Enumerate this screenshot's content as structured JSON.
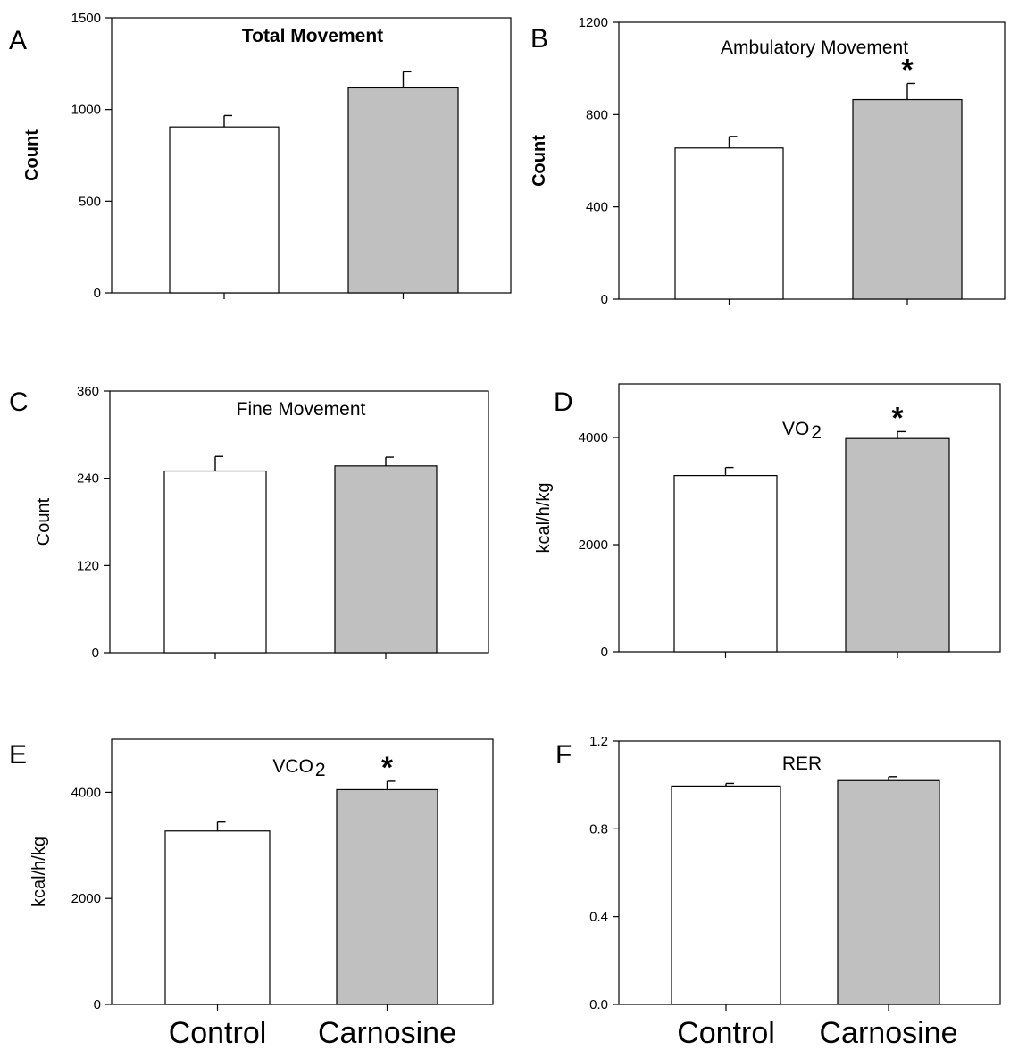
{
  "chart_data": [
    {
      "panel": "A",
      "type": "bar",
      "title": "Total Movement",
      "ylabel": "Count",
      "categories": [
        "Control",
        "Carnosine"
      ],
      "values": [
        905,
        1118
      ],
      "errors": [
        62,
        88
      ],
      "significant": [
        false,
        false
      ],
      "ylim": [
        0,
        1500
      ],
      "yticks": [
        0,
        500,
        1000,
        1500
      ],
      "colors": [
        "#ffffff",
        "#c0c0c0"
      ]
    },
    {
      "panel": "B",
      "type": "bar",
      "title": "Ambulatory Movement",
      "ylabel": "Count",
      "categories": [
        "Control",
        "Carnosine"
      ],
      "values": [
        655,
        865
      ],
      "errors": [
        50,
        70
      ],
      "significant": [
        false,
        true
      ],
      "ylim": [
        0,
        1200
      ],
      "yticks": [
        0,
        400,
        800,
        1200
      ],
      "colors": [
        "#ffffff",
        "#c0c0c0"
      ]
    },
    {
      "panel": "C",
      "type": "bar",
      "title": "Fine Movement",
      "ylabel": "Count",
      "categories": [
        "Control",
        "Carnosine"
      ],
      "values": [
        250,
        257
      ],
      "errors": [
        20,
        12
      ],
      "significant": [
        false,
        false
      ],
      "ylim": [
        0,
        360
      ],
      "yticks": [
        0,
        120,
        240,
        360
      ],
      "colors": [
        "#ffffff",
        "#c0c0c0"
      ]
    },
    {
      "panel": "D",
      "type": "bar",
      "title": "VO",
      "title_sub": "2",
      "ylabel": "kcal/h/kg",
      "categories": [
        "Control",
        "Carnosine"
      ],
      "values": [
        3290,
        3980
      ],
      "errors": [
        150,
        130
      ],
      "significant": [
        false,
        true
      ],
      "ylim": [
        0,
        5000
      ],
      "yticks": [
        0,
        2000,
        4000
      ],
      "colors": [
        "#ffffff",
        "#c0c0c0"
      ]
    },
    {
      "panel": "E",
      "type": "bar",
      "title": "VCO",
      "title_sub": "2",
      "ylabel": "kcal/h/kg",
      "categories": [
        "Control",
        "Carnosine"
      ],
      "values": [
        3270,
        4050
      ],
      "errors": [
        170,
        160
      ],
      "significant": [
        false,
        true
      ],
      "ylim": [
        0,
        5000
      ],
      "yticks": [
        0,
        2000,
        4000
      ],
      "colors": [
        "#ffffff",
        "#c0c0c0"
      ]
    },
    {
      "panel": "F",
      "type": "bar",
      "title": "RER",
      "ylabel": "",
      "categories": [
        "Control",
        "Carnosine"
      ],
      "values": [
        0.995,
        1.02
      ],
      "errors": [
        0.012,
        0.018
      ],
      "significant": [
        false,
        false
      ],
      "ylim": [
        0,
        1.2
      ],
      "yticks": [
        0.0,
        0.4,
        0.8,
        1.2
      ],
      "colors": [
        "#ffffff",
        "#c0c0c0"
      ]
    }
  ],
  "significance_marker": "*",
  "x_category_labels": [
    "Control",
    "Carnosine"
  ]
}
